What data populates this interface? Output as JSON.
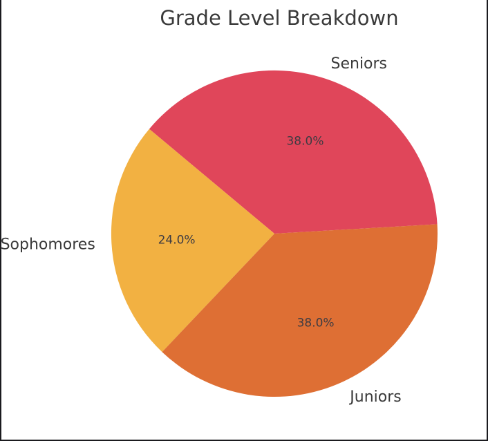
{
  "frame": {
    "background_color": "#ffffff",
    "border_color": "#1b1b1f"
  },
  "chart_data": {
    "type": "pie",
    "title": "Grade Level Breakdown",
    "categories": [
      "Seniors",
      "Sophomores",
      "Juniors"
    ],
    "values": [
      38.0,
      24.0,
      38.0
    ],
    "pct_labels": [
      "38.0%",
      "24.0%",
      "38.0%"
    ],
    "slice_colors": [
      "#e0465a",
      "#f2b142",
      "#de6f34"
    ],
    "start_angle_deg": 3.3,
    "direction": "counterclockwise",
    "legend": "none",
    "grid": "off",
    "title_color": "#3a3a3a",
    "label_color": "#3a3a3a",
    "pct_label_color": "#3d3b42"
  }
}
